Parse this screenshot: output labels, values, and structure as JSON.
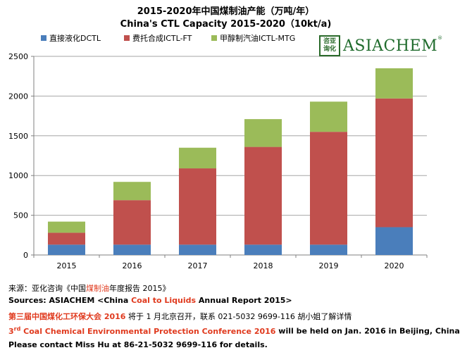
{
  "title_cn": "2015-2020年中国煤制油产能（万吨/年）",
  "title_en": "China's CTL Capacity 2015-2020（10kt/a)",
  "logo": {
    "mark_chars": [
      "咨",
      "亚",
      "询",
      "化"
    ],
    "text": "ASIACHEM",
    "reg": "®",
    "color": "#1f6b2c"
  },
  "chart_data": {
    "type": "bar",
    "stacked": true,
    "categories": [
      "2015",
      "2016",
      "2017",
      "2018",
      "2019",
      "2020"
    ],
    "series": [
      {
        "name": "直接液化DCTL",
        "color": "#4a7ebb",
        "values": [
          130,
          130,
          130,
          130,
          130,
          350
        ]
      },
      {
        "name": "费托合成ICTL-FT",
        "color": "#c0504d",
        "values": [
          150,
          560,
          960,
          1230,
          1420,
          1620
        ]
      },
      {
        "name": "甲醇制汽油ICTL-MTG",
        "color": "#9bbb59",
        "values": [
          140,
          230,
          260,
          350,
          380,
          380
        ]
      }
    ],
    "ylim": [
      0,
      2500
    ],
    "yticks": [
      0,
      500,
      1000,
      1500,
      2000,
      2500
    ],
    "grid": true,
    "legend_position": "top-left",
    "xlabel": "",
    "ylabel": ""
  },
  "notes": {
    "line1": {
      "prefix": "来源：亚化咨询《中国",
      "highlight": "煤制油",
      "suffix": "年度报告 2015》"
    },
    "line2": {
      "prefix": "Sources: ASIACHEM <China ",
      "highlight": "Coal to Liquids",
      "suffix": " Annual Report 2015>"
    },
    "line3": {
      "highlight": "第三届中国煤化工环保大会 2016",
      "suffix": " 将于 1 月北京召开，联系 021-5032 9699-116 胡小姐了解详情"
    },
    "line4": {
      "num": "3",
      "sup": "rd",
      "highlight": " Coal Chemical Environmental Protection Conference 2016",
      "suffix": " will be held on Jan. 2016 in Beijing, China"
    },
    "line5": "Please contact Miss Hu at 86-21-5032 9699-116 for details."
  }
}
